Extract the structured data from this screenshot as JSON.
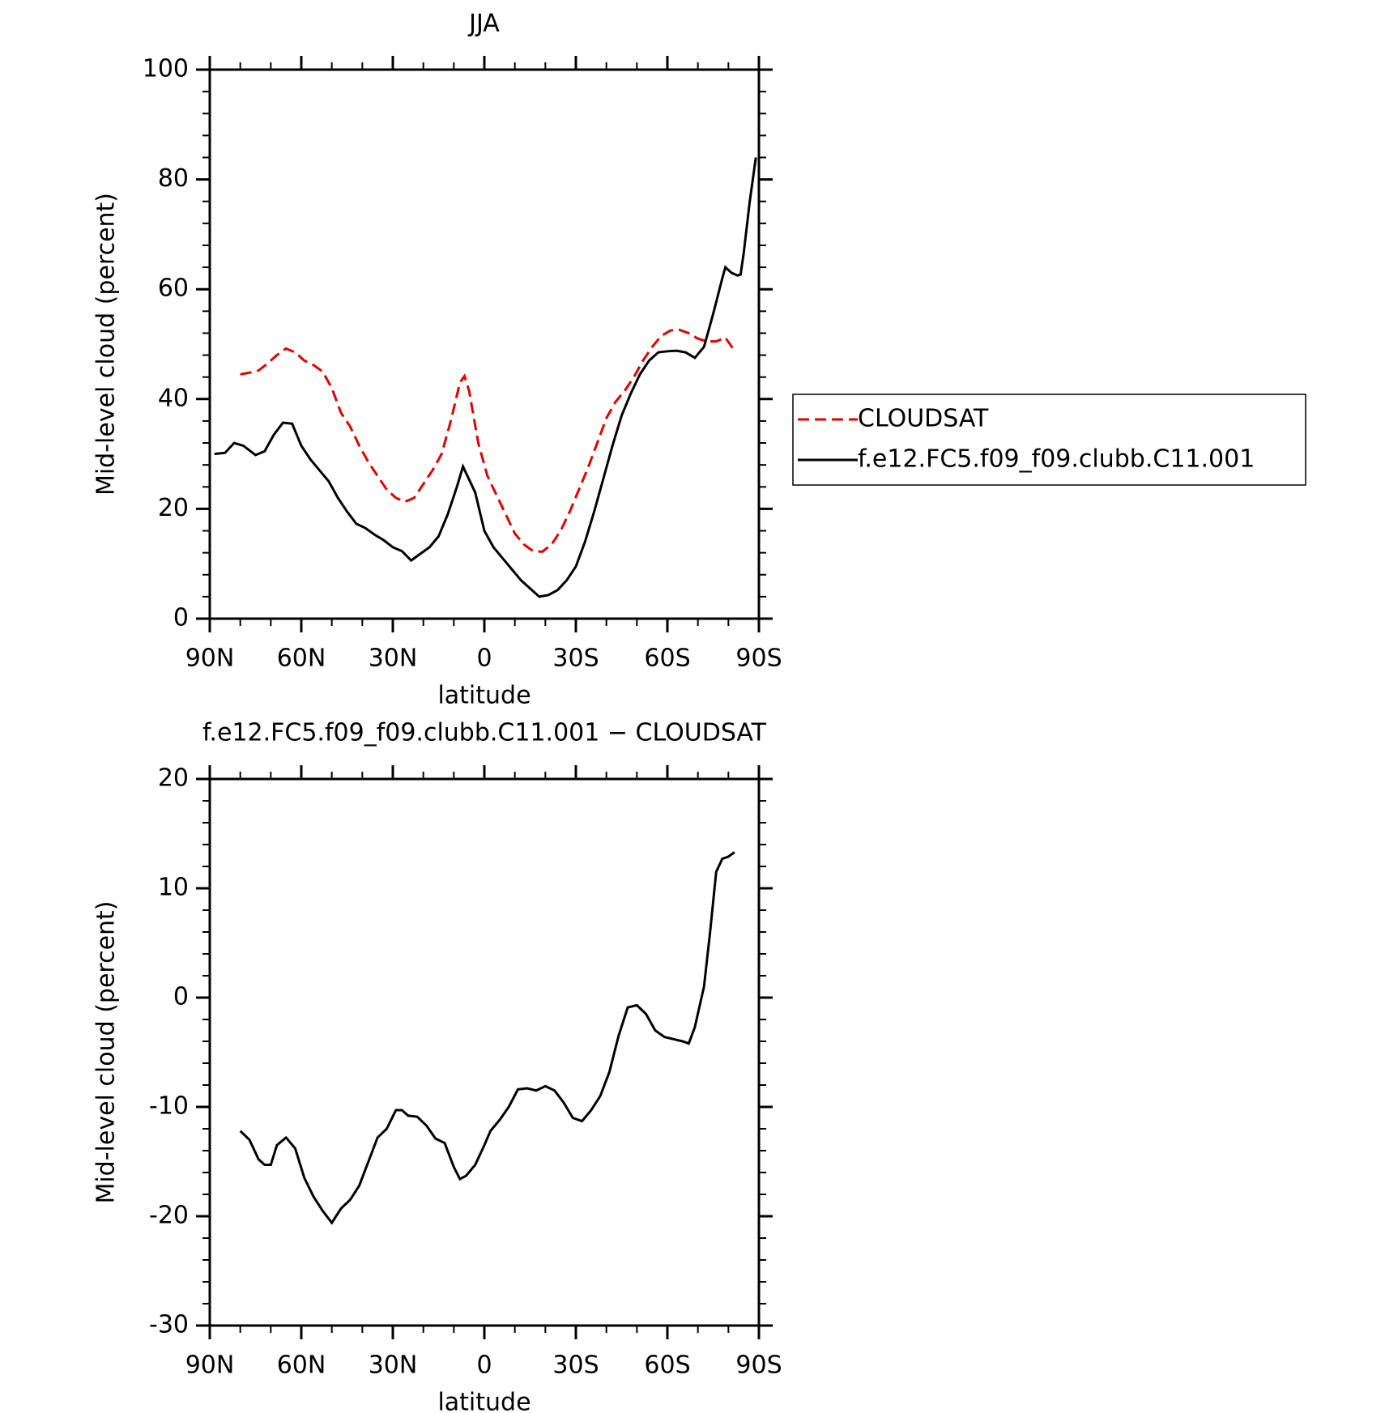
{
  "chart_data": [
    {
      "type": "line",
      "title": "JJA",
      "xlabel": "latitude",
      "ylabel": "Mid-level cloud (percent)",
      "xlim": [
        90,
        -90
      ],
      "ylim": [
        0,
        100
      ],
      "xticks": [
        {
          "value": 90,
          "label": "90N"
        },
        {
          "value": 60,
          "label": "60N"
        },
        {
          "value": 30,
          "label": "30N"
        },
        0,
        {
          "value": -30,
          "label": "30S"
        },
        {
          "value": -60,
          "label": "60S"
        },
        {
          "value": -90,
          "label": "90S"
        }
      ],
      "yticks": [
        0,
        20,
        40,
        60,
        80,
        100
      ],
      "legend": "right",
      "series": [
        {
          "name": "CLOUDSAT",
          "color": "#e00000",
          "dash": true,
          "x": [
            80,
            77,
            74,
            71,
            68,
            65,
            62,
            59,
            56,
            53,
            50,
            47,
            44,
            41,
            38,
            35,
            32,
            29,
            26,
            23,
            20,
            17,
            14,
            11,
            8,
            6.5,
            5,
            2,
            -1,
            -4,
            -7,
            -10,
            -13,
            -16,
            -19,
            -22,
            -25,
            -28,
            -31,
            -34,
            -37,
            -40,
            -43,
            -46,
            -49,
            -52,
            -55,
            -58,
            -61,
            -64,
            -67,
            -70,
            -73,
            -76,
            -79,
            -82
          ],
          "values": [
            44.5,
            44.8,
            45.2,
            46.5,
            48,
            49.2,
            48.5,
            47,
            46.2,
            45,
            42,
            37.5,
            35,
            31.5,
            28.5,
            26,
            23.5,
            22,
            21.3,
            22,
            24.5,
            27,
            30,
            36,
            43,
            44.2,
            41.5,
            32,
            26,
            22.5,
            19,
            15.5,
            13.5,
            12.3,
            12.2,
            13.5,
            16,
            19.5,
            23.5,
            27.5,
            32,
            36.5,
            39.5,
            41.5,
            44,
            47,
            49.5,
            51.5,
            52.5,
            52.6,
            52,
            51,
            50.5,
            50.5,
            51.2,
            48.8
          ]
        },
        {
          "name": "f.e12.FC5.f09_f09.clubb.C11.001",
          "color": "#000000",
          "dash": false,
          "x": [
            88.5,
            85,
            82,
            79,
            75,
            72,
            69,
            66,
            63,
            60,
            57,
            54,
            51,
            48,
            45,
            42,
            39,
            36,
            33,
            30,
            27,
            24,
            21,
            18,
            15,
            12,
            9,
            7,
            3,
            0,
            -3,
            -6,
            -9,
            -12,
            -15,
            -18,
            -21,
            -24,
            -27,
            -30,
            -33,
            -36,
            -39,
            -42,
            -45,
            -48,
            -51,
            -54,
            -57,
            -60,
            -63,
            -66,
            -69,
            -72,
            -75,
            -78,
            -79,
            -81,
            -83,
            -84,
            -85,
            -87,
            -89
          ],
          "values": [
            30,
            30.2,
            32,
            31.5,
            29.8,
            30.5,
            33.5,
            35.7,
            35.5,
            31.5,
            29,
            27,
            25,
            22,
            19.5,
            17.3,
            16.5,
            15.3,
            14.3,
            13,
            12.3,
            10.6,
            11.8,
            13,
            15,
            19,
            24,
            27.7,
            23,
            16,
            13,
            11,
            9,
            7,
            5.5,
            4,
            4.3,
            5.2,
            7,
            9.5,
            14,
            19.5,
            25.5,
            31.5,
            37,
            41,
            44.5,
            47,
            48.5,
            48.7,
            48.8,
            48.5,
            47.5,
            49.5,
            55.5,
            62,
            64,
            63,
            62.5,
            62.7,
            66.5,
            76,
            84
          ]
        }
      ]
    },
    {
      "type": "line",
      "title": "f.e12.FC5.f09_f09.clubb.C11.001 − CLOUDSAT",
      "xlabel": "latitude",
      "ylabel": "Mid-level cloud (percent)",
      "xlim": [
        90,
        -90
      ],
      "ylim": [
        -30,
        20
      ],
      "xticks": [
        {
          "value": 90,
          "label": "90N"
        },
        {
          "value": 60,
          "label": "60N"
        },
        {
          "value": 30,
          "label": "30N"
        },
        0,
        {
          "value": -30,
          "label": "30S"
        },
        {
          "value": -60,
          "label": "60S"
        },
        {
          "value": -90,
          "label": "90S"
        }
      ],
      "yticks": [
        -30,
        -20,
        -10,
        0,
        10,
        20
      ],
      "series": [
        {
          "color": "#000000",
          "dash": false,
          "x": [
            80,
            77,
            74,
            72,
            70,
            68,
            65,
            62,
            59,
            56,
            53,
            50,
            47,
            44,
            41,
            38,
            35,
            32,
            29,
            27,
            25,
            22,
            19,
            16,
            13,
            10,
            8,
            6,
            3,
            0,
            -2,
            -5,
            -8,
            -11,
            -14,
            -17,
            -20,
            -23,
            -26,
            -29,
            -32,
            -35,
            -38,
            -41,
            -44,
            -47,
            -50,
            -53,
            -56,
            -59,
            -62,
            -65,
            -67,
            -69,
            -72,
            -74,
            -76,
            -78,
            -80,
            -82
          ],
          "values": [
            -12.2,
            -13,
            -14.8,
            -15.3,
            -15.3,
            -13.5,
            -12.8,
            -13.8,
            -16.5,
            -18.2,
            -19.5,
            -20.6,
            -19.3,
            -18.5,
            -17.2,
            -15,
            -12.8,
            -12,
            -10.3,
            -10.3,
            -10.8,
            -10.9,
            -11.7,
            -12.9,
            -13.3,
            -15.5,
            -16.6,
            -16.3,
            -15.3,
            -13.5,
            -12.2,
            -11.2,
            -10,
            -8.4,
            -8.3,
            -8.5,
            -8.1,
            -8.5,
            -9.6,
            -11,
            -11.3,
            -10.3,
            -9,
            -6.8,
            -3.5,
            -0.9,
            -0.7,
            -1.5,
            -3,
            -3.6,
            -3.8,
            -4,
            -4.2,
            -2.7,
            1,
            6,
            11.5,
            12.7,
            12.9,
            13.3
          ]
        }
      ]
    }
  ]
}
